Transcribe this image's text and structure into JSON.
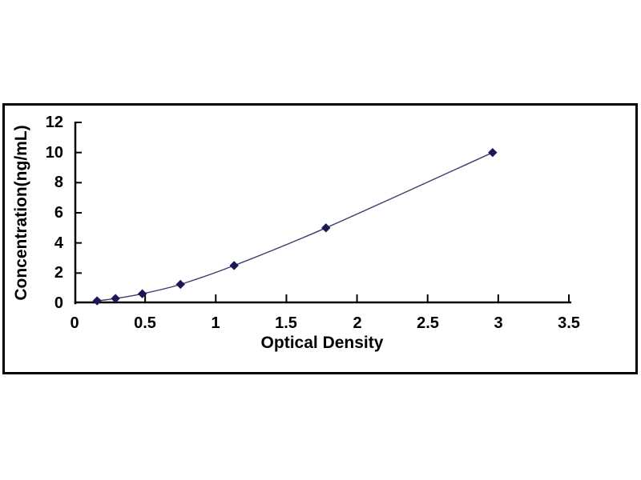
{
  "chart_data": {
    "type": "scatter",
    "subtype": "smooth-line-with-diamond-markers",
    "title": "",
    "xlabel": "Optical Density",
    "ylabel": "Concentration(ng/mL)",
    "x": [
      0.16,
      0.29,
      0.48,
      0.75,
      1.13,
      1.78,
      2.96
    ],
    "y": [
      0.156,
      0.312,
      0.625,
      1.25,
      2.5,
      5,
      10
    ],
    "xlim": [
      0,
      3.5
    ],
    "ylim": [
      0,
      12
    ],
    "x_ticks": [
      0,
      0.5,
      1,
      1.5,
      2,
      2.5,
      3,
      3.5
    ],
    "x_tick_labels": [
      "0",
      "0.5",
      "1",
      "1.5",
      "2",
      "2.5",
      "3",
      "3.5"
    ],
    "y_ticks": [
      0,
      2,
      4,
      6,
      8,
      10,
      12
    ],
    "y_tick_labels": [
      "0",
      "2",
      "4",
      "6",
      "8",
      "10",
      "12"
    ],
    "grid": false,
    "legend": null,
    "marker": "diamond",
    "colors": {
      "marker": "#1b1856",
      "line": "#3c3c6e",
      "axis": "#000000",
      "tick_text": "#000000",
      "frame_border": "#000000",
      "background": "#ffffff"
    }
  }
}
